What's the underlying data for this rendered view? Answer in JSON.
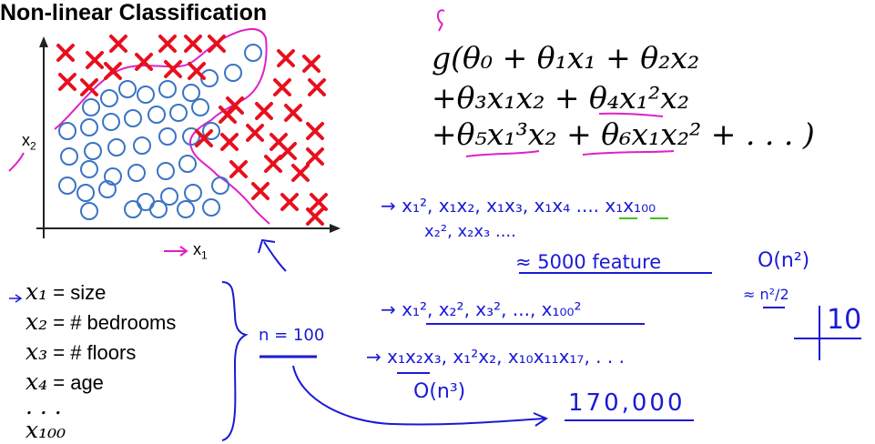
{
  "title": "Non-linear Classification",
  "axes": {
    "x_label": "x",
    "x_sub": "1",
    "y_label": "x",
    "y_sub": "2"
  },
  "equation": {
    "line1": "g(θ₀ + θ₁x₁ + θ₂x₂",
    "line2": "+θ₃x₁x₂ + θ₄x₁²x₂",
    "line3": "+θ₅x₁³x₂ + θ₆x₁x₂² + . . . )"
  },
  "features": [
    {
      "var": "x₁",
      "label": "= size"
    },
    {
      "var": "x₂",
      "label": "= # bedrooms"
    },
    {
      "var": "x₃",
      "label": "= # floors"
    },
    {
      "var": "x₄",
      "label": "= age"
    },
    {
      "var": ". . .",
      "label": ""
    },
    {
      "var": "x₁₀₀",
      "label": ""
    }
  ],
  "handwriting": {
    "quadratic_terms_1": "→ x₁², x₁x₂, x₁x₃, x₁x₄ .... x₁x₁₀₀",
    "quadratic_terms_2": "x₂², x₂x₃ ....",
    "approx_features": "≈ 5000 feature",
    "order_n2": "O(n²)",
    "approx_n2_over_2": "≈ n²/2",
    "n_equals": "n = 100",
    "squares": "→ x₁², x₂², x₃², ..., x₁₀₀²",
    "cubic_terms": "→ x₁x₂x₃, x₁²x₂, x₁₀x₁₁x₁₇, . . .",
    "order_n3": "O(n³)",
    "count_170k": "170,000",
    "ten": "10"
  },
  "colors": {
    "cross": "#e8101e",
    "circle": "#3a74c4",
    "pen_blue": "#1a1ad6",
    "pen_magenta": "#e020c8",
    "pen_green": "#40c020"
  }
}
